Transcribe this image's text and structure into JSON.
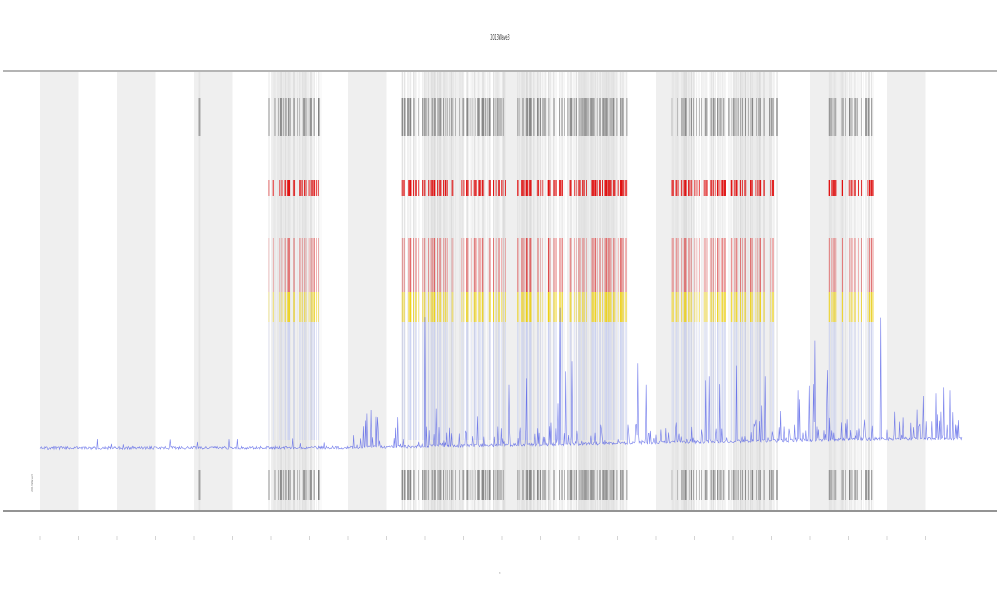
{
  "chart_data": {
    "type": "line",
    "title": "2013Wave3",
    "xlabel": "t",
    "ylabel": "",
    "legend_label": "2013Wave3",
    "grid": false,
    "band_count": 12,
    "tick_count": 24,
    "colors": {
      "line": "#4b57e6",
      "band": "#dcdcdc",
      "cluster": "#cfcfcf",
      "red": "#e01010",
      "yellow": "#f0d000",
      "blue_fill": "#c8d0f5",
      "spike": "#7a7a7a"
    },
    "event_clusters": [
      {
        "start": 0.248,
        "end": 0.305,
        "intensity": 0.8
      },
      {
        "start": 0.392,
        "end": 0.505,
        "intensity": 1.0
      },
      {
        "start": 0.518,
        "end": 0.64,
        "intensity": 1.0
      },
      {
        "start": 0.685,
        "end": 0.8,
        "intensity": 0.9
      },
      {
        "start": 0.855,
        "end": 0.905,
        "intensity": 0.8
      },
      {
        "start": 0.17,
        "end": 0.175,
        "intensity": 0.3
      }
    ]
  }
}
